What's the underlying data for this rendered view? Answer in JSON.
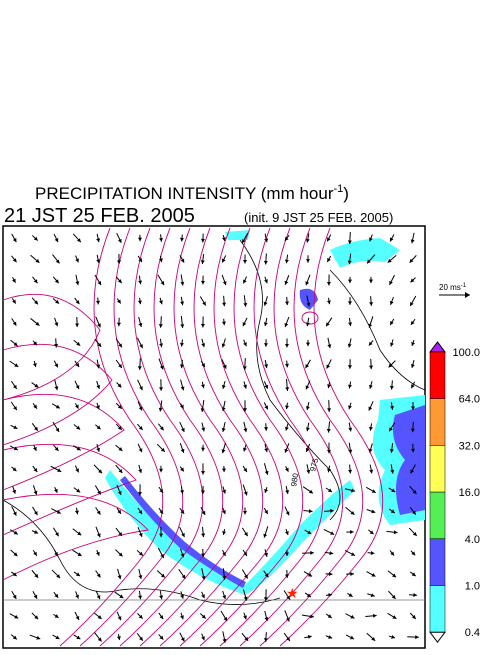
{
  "header": {
    "title": "PRECIPITATION INTENSITY (mm hour",
    "title_exponent": "-1",
    "title_close": ")",
    "valid_time": "21 JST 25 FEB. 2005",
    "init_time": "(init. 9 JST 25 FEB. 2005)"
  },
  "wind_scale": {
    "label": "20 ms",
    "exponent": "-1"
  },
  "map": {
    "contour_labels": [
      "980",
      "975"
    ]
  },
  "colorbar": {
    "labels": [
      "100.0",
      "64.0",
      "32.0",
      "16.0",
      "4.0",
      "1.0",
      "0.4"
    ],
    "colors": [
      "#ff0000",
      "#ff9933",
      "#ffff55",
      "#55ee55",
      "#5555ff",
      "#55ffff"
    ],
    "over_color": "#aa22ee",
    "under_color": "#ffffff"
  }
}
